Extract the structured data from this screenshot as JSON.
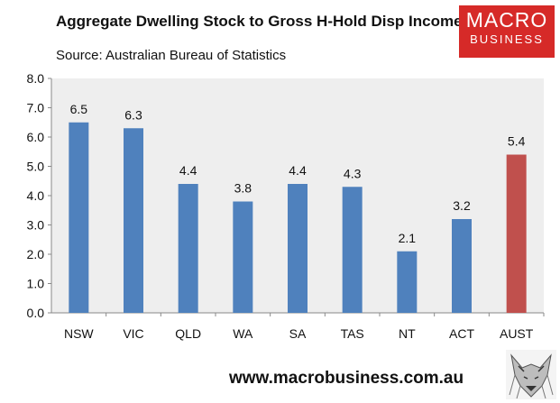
{
  "title": "Aggregate Dwelling Stock to Gross H-Hold Disp Income",
  "source": "Source: Australian Bureau of Statistics",
  "logo": {
    "line1": "MACRO",
    "line2": "BUSINESS",
    "color": "#d62a28"
  },
  "footer_url": "www.macrobusiness.com.au",
  "colors": {
    "bar": "#4f81bd",
    "highlight": "#c0504d",
    "plot_bg": "#eeeeee"
  },
  "chart_data": {
    "type": "bar",
    "title": "Aggregate Dwelling Stock to Gross H-Hold Disp Income",
    "xlabel": "",
    "ylabel": "",
    "categories": [
      "NSW",
      "VIC",
      "QLD",
      "WA",
      "SA",
      "TAS",
      "NT",
      "ACT",
      "AUST"
    ],
    "values": [
      6.5,
      6.3,
      4.4,
      3.8,
      4.4,
      4.3,
      2.1,
      3.2,
      5.4
    ],
    "value_labels": [
      "6.5",
      "6.3",
      "4.4",
      "3.8",
      "4.4",
      "4.3",
      "2.1",
      "3.2",
      "5.4"
    ],
    "highlight_index": 8,
    "ylim": [
      0,
      8
    ],
    "yticks": [
      "0.0",
      "1.0",
      "2.0",
      "3.0",
      "4.0",
      "5.0",
      "6.0",
      "7.0",
      "8.0"
    ],
    "grid": false,
    "legend": "none"
  }
}
